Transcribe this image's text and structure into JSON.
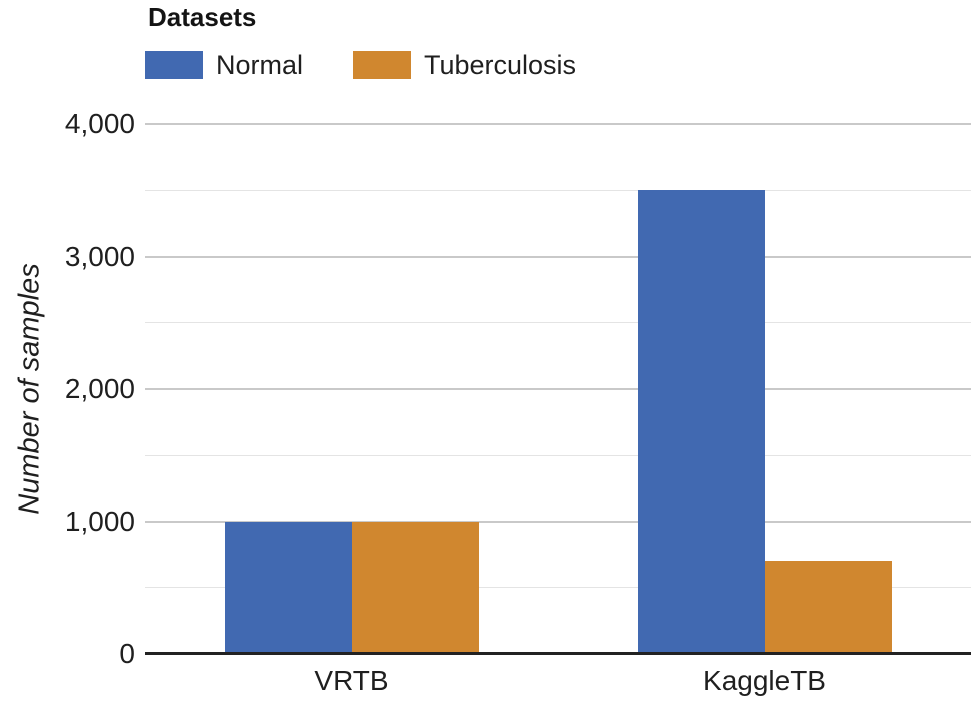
{
  "chart_data": {
    "type": "bar",
    "title": "",
    "legend_title": "Datasets",
    "categories": [
      "VRTB",
      "KaggleTB"
    ],
    "series": [
      {
        "name": "Normal",
        "color": "#4169b1",
        "values": [
          1000,
          3500
        ]
      },
      {
        "name": "Tuberculosis",
        "color": "#d0872f",
        "values": [
          1000,
          700
        ]
      }
    ],
    "ylabel": "Number of samples",
    "xlabel": "",
    "ylim": [
      0,
      4000
    ],
    "y_ticks": [
      {
        "value": 0,
        "label": "0"
      },
      {
        "value": 1000,
        "label": "1,000"
      },
      {
        "value": 2000,
        "label": "2,000"
      },
      {
        "value": 3000,
        "label": "3,000"
      },
      {
        "value": 4000,
        "label": "4,000"
      }
    ],
    "y_minor_ticks": [
      500,
      1500,
      2500,
      3500
    ],
    "grid": "horizontal",
    "legend_position": "top-left"
  },
  "style": {
    "major_gridline_color": "#c9c9c9",
    "minor_gridline_color": "#e4e4e4",
    "axis_line_color": "#222222",
    "text_color": "#1f1f1f",
    "background_color": "#ffffff"
  }
}
